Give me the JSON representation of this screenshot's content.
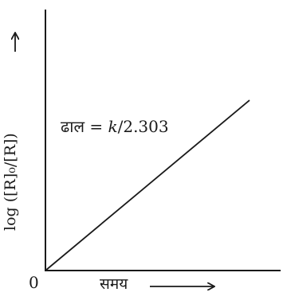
{
  "diagram": {
    "origin_label": "0",
    "x_axis_label": "समय",
    "y_axis_label": "log ([R]₀/[R])",
    "slope_word": "ढाल",
    "slope_equals": " = ",
    "slope_k": "k",
    "slope_rest": "/2.303",
    "colors": {
      "stroke": "#1a1a1a",
      "background": "#ffffff"
    }
  }
}
